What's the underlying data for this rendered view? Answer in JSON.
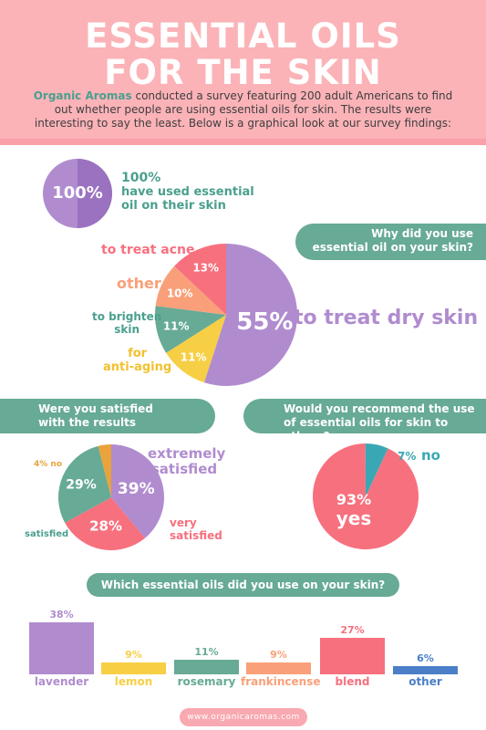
{
  "header": {
    "title_line1": "ESSENTIAL OILS",
    "title_line2": "FOR THE SKIN",
    "intro_brand": "Organic Aromas",
    "intro_text": " conducted a survey featuring 200 adult Americans to find out whether people are using essential oils for skin. The results were interesting to say the least. Below is a graphical look at our survey findings:"
  },
  "used": {
    "percent": "100%",
    "stat": "100%",
    "line1": "have used essential",
    "line2": "oil on their skin"
  },
  "why": {
    "question_line1": "Why did you use",
    "question_line2": "essential oil on your skin?",
    "chart_data": {
      "type": "pie",
      "categories": [
        "to treat dry skin",
        "for anti-aging",
        "to brighten skin",
        "other",
        "to treat acne"
      ],
      "values": [
        55,
        11,
        11,
        10,
        13
      ],
      "value_labels": [
        "55%",
        "11%",
        "11%",
        "10%",
        "13%"
      ],
      "colors": [
        "#b08ccf",
        "#f7cf45",
        "#67aa96",
        "#f9a07a",
        "#f7707e"
      ]
    },
    "labels": {
      "dry": "to treat dry skin",
      "anti1": "for",
      "anti2": "anti-aging",
      "brighten1": "to brighten",
      "brighten2": "skin",
      "other": "other",
      "acne": "to treat acne"
    }
  },
  "satisfied": {
    "question_line1": "Were you satisfied",
    "question_line2": "with the results",
    "chart_data": {
      "type": "pie",
      "categories": [
        "extremely satisfied",
        "very satisfied",
        "satisfied",
        "no"
      ],
      "values": [
        39,
        28,
        29,
        4
      ],
      "value_labels": [
        "39%",
        "28%",
        "29%",
        "4%"
      ],
      "colors": [
        "#b08ccf",
        "#f7707e",
        "#67aa96",
        "#e9a33a"
      ]
    },
    "labels": {
      "extreme1": "extremely",
      "extreme2": "satisfied",
      "very1": "very",
      "very2": "satisfied",
      "satisfied": "satisfied",
      "no": "4% no"
    }
  },
  "recommend": {
    "question_line1": "Would you recommend the use",
    "question_line2": "of essential oils for skin to others?",
    "chart_data": {
      "type": "pie",
      "categories": [
        "yes",
        "no"
      ],
      "values": [
        93,
        7
      ],
      "value_labels": [
        "93%",
        "7%"
      ],
      "colors": [
        "#f7707e",
        "#3aa7b5"
      ]
    },
    "labels": {
      "yes_pct": "93%",
      "yes": "yes",
      "no_pct": "7%",
      "no": "no"
    }
  },
  "oils": {
    "question": "Which essential oils did you use on your skin?",
    "chart_data": {
      "type": "bar",
      "categories": [
        "lavender",
        "lemon",
        "rosemary",
        "frankincense",
        "blend",
        "other"
      ],
      "values": [
        38,
        9,
        11,
        9,
        27,
        6
      ],
      "value_labels": [
        "38%",
        "9%",
        "11%",
        "9%",
        "27%",
        "6%"
      ],
      "colors": [
        "#b08ccf",
        "#f7cf45",
        "#67aa96",
        "#f9a07a",
        "#f7707e",
        "#4a7fc8"
      ]
    }
  },
  "footer": {
    "url": "www.organicaromas.com"
  }
}
